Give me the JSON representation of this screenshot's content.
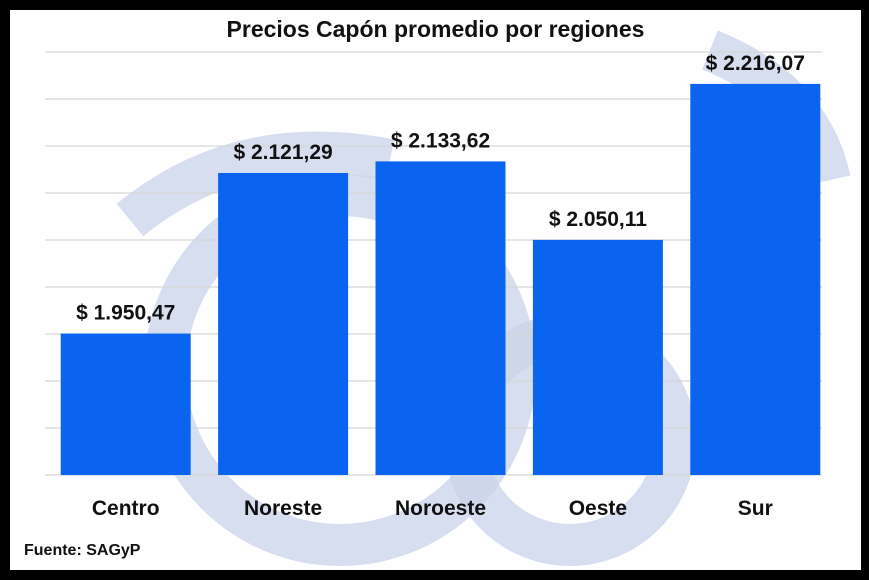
{
  "chart_data": {
    "type": "bar",
    "title": "Precios Capón promedio por regiones",
    "categories": [
      "Centro",
      "Noreste",
      "Noroeste",
      "Oeste",
      "Sur"
    ],
    "values": [
      1950.47,
      2121.29,
      2133.62,
      2050.11,
      2216.07
    ],
    "value_labels": [
      "$ 1.950,47",
      "$ 2.121,29",
      "$ 2.133,62",
      "$ 2.050,11",
      "$ 2.216,07"
    ],
    "ylim": [
      1800,
      2250
    ],
    "grid": true,
    "bar_color": "#0a64f0",
    "source": "Fuente: SAGyP"
  }
}
